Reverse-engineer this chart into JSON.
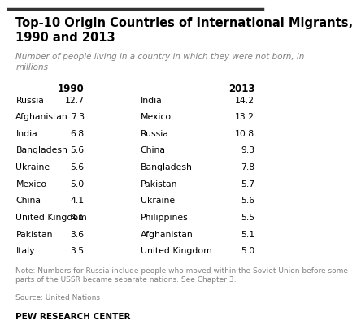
{
  "title": "Top-10 Origin Countries of International Migrants,\n1990 and 2013",
  "subtitle": "Number of people living in a country in which they were not born, in\nmillions",
  "col1990_header": "1990",
  "col2013_header": "2013",
  "countries_1990": [
    "Russia",
    "Afghanistan",
    "India",
    "Bangladesh",
    "Ukraine",
    "Mexico",
    "China",
    "United Kingdom",
    "Pakistan",
    "Italy"
  ],
  "values_1990": [
    12.7,
    7.3,
    6.8,
    5.6,
    5.6,
    5.0,
    4.1,
    4.1,
    3.6,
    3.5
  ],
  "countries_2013": [
    "India",
    "Mexico",
    "Russia",
    "China",
    "Bangladesh",
    "Pakistan",
    "Ukraine",
    "Philippines",
    "Afghanistan",
    "United Kingdom"
  ],
  "values_2013": [
    14.2,
    13.2,
    10.8,
    9.3,
    7.8,
    5.7,
    5.6,
    5.5,
    5.1,
    5.0
  ],
  "note": "Note: Numbers for Russia include people who moved within the Soviet Union before some\nparts of the USSR became separate nations. See Chapter 3.",
  "source": "Source: United Nations",
  "footer": "PEW RESEARCH CENTER",
  "bg_color": "#ffffff",
  "title_color": "#000000",
  "subtitle_color": "#808080",
  "text_color": "#000000",
  "note_color": "#808080",
  "header_color": "#000000",
  "border_color": "#333333"
}
